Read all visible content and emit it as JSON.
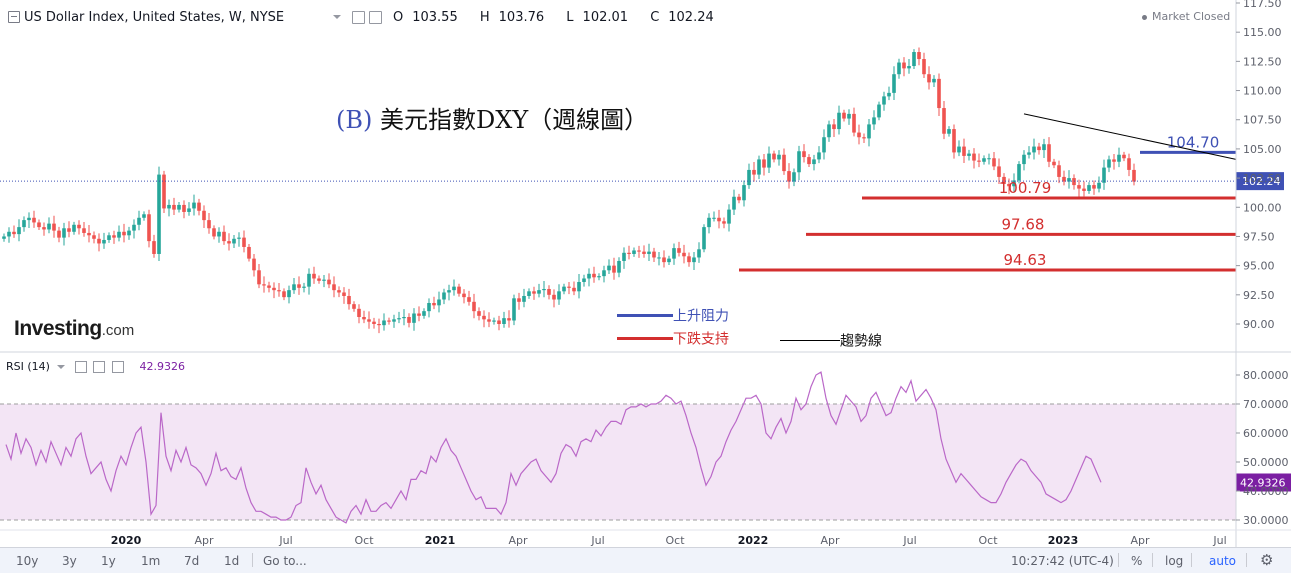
{
  "header": {
    "title": "US Dollar Index, United States, W, NYSE",
    "ohlc": [
      {
        "label": "O",
        "value": "103.55"
      },
      {
        "label": "H",
        "value": "103.76"
      },
      {
        "label": "L",
        "value": "102.01"
      },
      {
        "label": "C",
        "value": "102.24"
      }
    ],
    "market_status": "Market Closed"
  },
  "logo": {
    "text": "Investing",
    "suffix": ".com"
  },
  "annotation_title": {
    "prefix": "(B)",
    "text": "美元指數DXY（週線圖）"
  },
  "legend": {
    "resistance": "上升阻力",
    "support": "下跌支持",
    "trend": "趨勢線"
  },
  "rsi_panel": {
    "label": "RSI (14)",
    "value": "42.9326"
  },
  "bottom_bar": {
    "ranges": [
      "10y",
      "3y",
      "1y",
      "1m",
      "7d",
      "1d"
    ],
    "goto": "Go to...",
    "clock": "10:27:42 (UTC-4)",
    "percent": "%",
    "log": "log",
    "auto": "auto"
  },
  "colors": {
    "up": "#26a69a",
    "down": "#ef5350",
    "resistance": "#3f51b5",
    "support": "#d32f2f",
    "rsi_line": "#ba68c8",
    "rsi_band": "#f3e5f5",
    "price_tag": "#3f51b5",
    "rsi_tag": "#7b1fa2"
  },
  "chart_data": [
    {
      "type": "candlestick",
      "title": "US Dollar Index, United States, W, NYSE",
      "x_ticks": [
        "2020",
        "Apr",
        "Jul",
        "Oct",
        "2021",
        "Apr",
        "Jul",
        "Oct",
        "2022",
        "Apr",
        "Jul",
        "Oct",
        "2023",
        "Apr",
        "Jul"
      ],
      "y_ticks": [
        "90.00",
        "92.50",
        "95.00",
        "97.50",
        "100.00",
        "102.50",
        "105.00",
        "107.50",
        "110.00",
        "112.50",
        "115.00",
        "117.50"
      ],
      "ylim": [
        88.0,
        117.5
      ],
      "last_price": "102.24",
      "close_series": [
        97.5,
        97.9,
        97.7,
        98.3,
        98.9,
        99.1,
        98.7,
        98.3,
        98.1,
        98.6,
        98.0,
        97.4,
        98.2,
        97.9,
        98.5,
        98.2,
        97.8,
        97.6,
        97.3,
        96.9,
        97.2,
        97.6,
        97.4,
        97.9,
        97.6,
        98.0,
        98.5,
        99.1,
        99.4,
        97.1,
        96.0,
        102.8,
        99.9,
        100.2,
        99.8,
        100.2,
        99.6,
        99.9,
        100.4,
        99.7,
        98.9,
        98.2,
        97.5,
        97.9,
        97.1,
        96.9,
        97.3,
        97.4,
        96.6,
        95.6,
        94.6,
        93.4,
        93.3,
        93.1,
        92.9,
        92.8,
        92.3,
        92.9,
        93.4,
        93.1,
        93.2,
        94.3,
        93.9,
        93.7,
        93.8,
        93.4,
        92.9,
        92.7,
        92.4,
        91.7,
        91.3,
        90.6,
        90.4,
        90.2,
        90.0,
        89.9,
        90.3,
        90.2,
        90.4,
        90.5,
        90.6,
        90.1,
        90.9,
        90.7,
        91.1,
        91.8,
        91.6,
        92.1,
        92.7,
        92.9,
        93.2,
        92.6,
        92.3,
        91.9,
        91.1,
        90.7,
        90.4,
        90.2,
        90.3,
        90.0,
        90.5,
        90.3,
        92.2,
        91.9,
        92.4,
        92.8,
        92.6,
        92.9,
        93.0,
        92.5,
        92.1,
        92.8,
        93.2,
        93.1,
        92.8,
        93.6,
        93.9,
        94.3,
        94.0,
        94.1,
        94.6,
        95.0,
        94.4,
        95.4,
        96.1,
        96.0,
        96.3,
        96.2,
        96.0,
        96.2,
        95.7,
        95.7,
        95.3,
        95.6,
        96.5,
        96.1,
        95.8,
        95.3,
        95.7,
        96.4,
        98.3,
        99.1,
        99.1,
        98.8,
        98.6,
        99.8,
        100.9,
        100.6,
        101.9,
        103.2,
        102.8,
        104.1,
        103.4,
        104.6,
        104.1,
        104.5,
        103.1,
        102.2,
        103.0,
        104.8,
        104.3,
        103.7,
        104.1,
        104.7,
        106.0,
        107.1,
        106.7,
        108.1,
        107.6,
        108.0,
        106.4,
        106.0,
        105.9,
        107.1,
        107.7,
        108.8,
        109.5,
        109.8,
        111.4,
        112.4,
        111.9,
        112.1,
        113.3,
        112.7,
        111.4,
        110.7,
        111.0,
        108.5,
        106.3,
        106.7,
        104.7,
        105.2,
        104.4,
        104.6,
        104.0,
        103.9,
        104.2,
        104.2,
        103.5,
        102.6,
        102.0,
        101.8,
        102.3,
        103.7,
        104.5,
        104.7,
        105.2,
        104.9,
        105.4,
        103.9,
        103.6,
        102.6,
        102.2,
        102.5,
        101.9,
        101.6,
        101.4,
        101.9,
        101.6,
        102.1,
        103.4,
        104.1,
        103.9,
        104.5,
        104.2,
        103.2,
        102.2
      ],
      "levels": [
        {
          "value": 104.7,
          "label": "104.70",
          "kind": "resistance"
        },
        {
          "value": 100.79,
          "label": "100.79",
          "kind": "support"
        },
        {
          "value": 97.68,
          "label": "97.68",
          "kind": "support"
        },
        {
          "value": 94.63,
          "label": "94.63",
          "kind": "support"
        }
      ],
      "trendline": [
        {
          "x": 180,
          "y": 108.0
        },
        {
          "x": 238,
          "y": 104.1
        }
      ]
    },
    {
      "type": "line",
      "title": "RSI (14)",
      "y_ticks": [
        "30.0000",
        "40.0000",
        "50.0000",
        "60.0000",
        "70.0000",
        "80.0000"
      ],
      "ylim": [
        28,
        84
      ],
      "band": [
        30,
        70
      ],
      "last_value": "42.9326",
      "values": [
        56,
        51,
        60,
        53,
        58,
        55,
        49,
        54,
        50,
        57,
        53,
        49,
        55,
        52,
        58,
        60,
        52,
        46,
        48,
        50,
        44,
        40,
        47,
        52,
        49,
        55,
        60,
        62,
        50,
        32,
        35,
        67,
        52,
        47,
        54,
        50,
        55,
        49,
        48,
        46,
        42,
        46,
        53,
        47,
        48,
        45,
        44,
        48,
        41,
        36,
        33,
        33,
        32,
        31,
        31,
        30,
        30,
        31,
        35,
        36,
        48,
        43,
        39,
        42,
        37,
        34,
        31,
        30,
        29,
        33,
        35,
        32,
        37,
        33,
        33,
        35,
        36,
        34,
        37,
        40,
        37,
        44,
        44,
        47,
        46,
        52,
        50,
        55,
        58,
        54,
        52,
        48,
        44,
        40,
        37,
        38,
        34,
        34,
        34,
        32,
        36,
        46,
        42,
        46,
        48,
        50,
        51,
        47,
        45,
        43,
        46,
        53,
        56,
        55,
        52,
        57,
        58,
        57,
        61,
        59,
        62,
        64,
        64,
        63,
        68,
        69,
        69,
        70,
        69,
        70,
        70,
        71,
        73,
        72,
        70,
        71,
        66,
        60,
        55,
        48,
        42,
        45,
        50,
        52,
        57,
        61,
        64,
        68,
        72,
        72,
        73,
        70,
        60,
        58,
        62,
        65,
        60,
        64,
        72,
        68,
        70,
        76,
        80,
        81,
        72,
        66,
        63,
        68,
        73,
        71,
        69,
        64,
        66,
        72,
        74,
        70,
        66,
        67,
        72,
        76,
        74,
        78,
        71,
        73,
        75,
        72,
        68,
        58,
        51,
        47,
        43,
        46,
        44,
        42,
        40,
        38,
        37,
        36,
        36,
        39,
        43,
        46,
        49,
        51,
        50,
        47,
        45,
        43,
        39,
        38,
        37,
        36,
        37,
        40,
        44,
        48,
        52,
        51,
        47,
        43
      ]
    }
  ]
}
